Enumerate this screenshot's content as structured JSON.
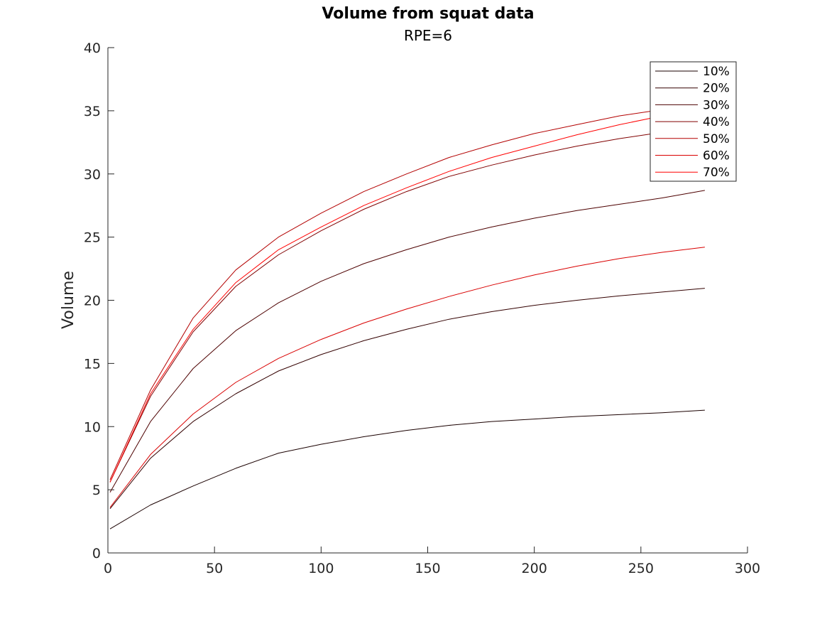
{
  "chart_data": {
    "type": "line",
    "title": "Volume from squat data",
    "subtitle": "RPE=6",
    "xlabel": "",
    "ylabel": "Volume",
    "xlim": [
      0,
      300
    ],
    "ylim": [
      0,
      40
    ],
    "xticks": [
      "0",
      "50",
      "100",
      "150",
      "200",
      "250",
      "300"
    ],
    "yticks": [
      "0",
      "5",
      "10",
      "15",
      "20",
      "25",
      "30",
      "35",
      "40"
    ],
    "grid": false,
    "legend_position": "top-right",
    "x": [
      1,
      20,
      40,
      60,
      80,
      100,
      120,
      140,
      160,
      180,
      200,
      220,
      240,
      260,
      280
    ],
    "series": [
      {
        "name": "10%",
        "color": "#1a0000",
        "values": [
          1.9,
          3.8,
          5.3,
          6.7,
          7.9,
          8.6,
          9.2,
          9.7,
          10.1,
          10.4,
          10.6,
          10.8,
          10.95,
          11.1,
          11.3
        ]
      },
      {
        "name": "20%",
        "color": "#330000",
        "values": [
          3.5,
          7.5,
          10.4,
          12.6,
          14.4,
          15.7,
          16.8,
          17.7,
          18.5,
          19.1,
          19.6,
          20.0,
          20.35,
          20.65,
          20.95
        ]
      },
      {
        "name": "30%",
        "color": "#4d0000",
        "values": [
          4.8,
          10.4,
          14.6,
          17.6,
          19.8,
          21.5,
          22.9,
          24.0,
          25.0,
          25.8,
          26.5,
          27.1,
          27.6,
          28.1,
          28.7
        ]
      },
      {
        "name": "40%",
        "color": "#800000",
        "values": [
          5.6,
          12.4,
          17.5,
          21.1,
          23.6,
          25.5,
          27.2,
          28.6,
          29.8,
          30.7,
          31.5,
          32.2,
          32.8,
          33.3,
          33.7
        ]
      },
      {
        "name": "50%",
        "color": "#b30000",
        "values": [
          5.8,
          12.9,
          18.6,
          22.4,
          25.0,
          26.9,
          28.6,
          30.0,
          31.3,
          32.3,
          33.2,
          33.9,
          34.6,
          35.1,
          35.6
        ]
      },
      {
        "name": "60%",
        "color": "#d90000",
        "values": [
          3.6,
          7.8,
          11.0,
          13.5,
          15.4,
          16.9,
          18.2,
          19.3,
          20.3,
          21.2,
          22.0,
          22.7,
          23.3,
          23.8,
          24.2
        ]
      },
      {
        "name": "70%",
        "color": "#ff0000",
        "values": [
          5.6,
          12.6,
          17.7,
          21.4,
          24.0,
          25.8,
          27.5,
          28.9,
          30.2,
          31.3,
          32.2,
          33.1,
          33.9,
          34.6,
          35.1
        ]
      }
    ]
  }
}
